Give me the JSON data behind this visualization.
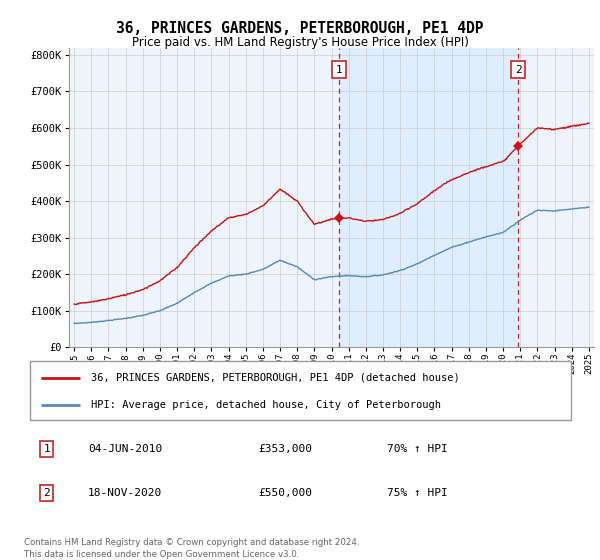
{
  "title": "36, PRINCES GARDENS, PETERBOROUGH, PE1 4DP",
  "subtitle": "Price paid vs. HM Land Registry's House Price Index (HPI)",
  "hpi_color": "#5588bb",
  "price_color": "#cc1111",
  "dashed_color": "#cc2222",
  "shade_color": "#ddeeff",
  "background_color": "#ffffff",
  "plot_bg_color": "#eef4fb",
  "grid_color": "#cccccc",
  "ylim": [
    0,
    820000
  ],
  "yticks": [
    0,
    100000,
    200000,
    300000,
    400000,
    500000,
    600000,
    700000,
    800000
  ],
  "ytick_labels": [
    "£0",
    "£100K",
    "£200K",
    "£300K",
    "£400K",
    "£500K",
    "£600K",
    "£700K",
    "£800K"
  ],
  "xmin_year": 1995,
  "xmax_year": 2025,
  "xtick_years": [
    1995,
    1996,
    1997,
    1998,
    1999,
    2000,
    2001,
    2002,
    2003,
    2004,
    2005,
    2006,
    2007,
    2008,
    2009,
    2010,
    2011,
    2012,
    2013,
    2014,
    2015,
    2016,
    2017,
    2018,
    2019,
    2020,
    2021,
    2022,
    2023,
    2024,
    2025
  ],
  "sale1_year": 2010.43,
  "sale1_price": 353000,
  "sale1_label": "1",
  "sale2_year": 2020.88,
  "sale2_price": 550000,
  "sale2_label": "2",
  "legend_line1": "36, PRINCES GARDENS, PETERBOROUGH, PE1 4DP (detached house)",
  "legend_line2": "HPI: Average price, detached house, City of Peterborough",
  "annotation1_date": "04-JUN-2010",
  "annotation1_price": "£353,000",
  "annotation1_hpi": "70% ↑ HPI",
  "annotation2_date": "18-NOV-2020",
  "annotation2_price": "£550,000",
  "annotation2_hpi": "75% ↑ HPI",
  "footer": "Contains HM Land Registry data © Crown copyright and database right 2024.\nThis data is licensed under the Open Government Licence v3.0."
}
